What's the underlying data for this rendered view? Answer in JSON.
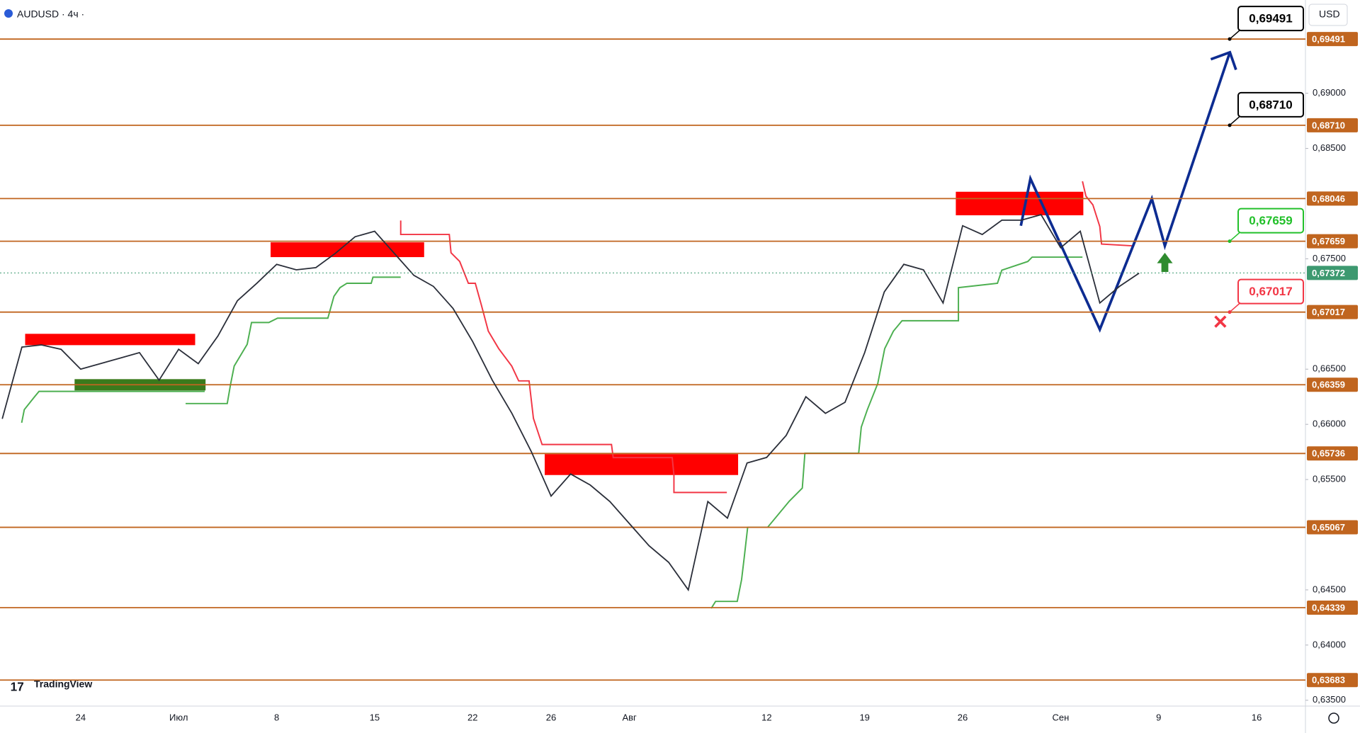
{
  "chart_data": {
    "type": "line",
    "title": "AUDUSD · 4ч ·",
    "currency": "USD",
    "brand": "TradingView",
    "color": "#2a2e39",
    "grid": false,
    "ylim": [
      0.63447,
      0.69845
    ],
    "yticks": [
      {
        "value": 0.635,
        "label": "0,63500"
      },
      {
        "value": 0.64,
        "label": "0,64000"
      },
      {
        "value": 0.645,
        "label": "0,64500"
      },
      {
        "value": 0.655,
        "label": "0,65500"
      },
      {
        "value": 0.66,
        "label": "0,66000"
      },
      {
        "value": 0.665,
        "label": "0,66500"
      },
      {
        "value": 0.675,
        "label": "0,67500"
      },
      {
        "value": 0.685,
        "label": "0,68500"
      },
      {
        "value": 0.69,
        "label": "0,69000"
      }
    ],
    "categories": [
      null,
      null,
      null,
      null,
      "24",
      null,
      null,
      null,
      null,
      "Июл",
      null,
      null,
      null,
      null,
      "8",
      null,
      null,
      null,
      null,
      "15",
      null,
      null,
      null,
      null,
      "22",
      null,
      null,
      null,
      "26",
      null,
      null,
      null,
      "Авг",
      null,
      null,
      null,
      null,
      null,
      null,
      "12",
      null,
      null,
      null,
      null,
      "19",
      null,
      null,
      null,
      null,
      "26",
      null,
      null,
      null,
      null,
      "Сен",
      null,
      null,
      null,
      null,
      "9",
      null,
      null,
      null,
      null,
      "16"
    ],
    "values": [
      0.6605,
      0.667,
      0.6672,
      0.6668,
      0.665,
      0.6655,
      0.666,
      0.6665,
      0.664,
      0.6668,
      0.6655,
      0.668,
      0.6712,
      0.6728,
      0.6745,
      0.674,
      0.6742,
      0.6755,
      0.677,
      0.6775,
      0.6755,
      0.6735,
      0.6725,
      0.6705,
      0.6675,
      0.664,
      0.661,
      0.6575,
      0.6535,
      0.6555,
      0.6545,
      0.653,
      0.651,
      0.649,
      0.6475,
      0.645,
      0.653,
      0.6515,
      0.6565,
      0.657,
      0.659,
      0.6625,
      0.661,
      0.662,
      0.6665,
      0.672,
      0.6745,
      0.674,
      0.671,
      0.678,
      0.6772,
      0.6785,
      0.6785,
      0.679,
      0.676,
      0.6775,
      0.671,
      0.6725,
      0.6737,
      null,
      null,
      null,
      null,
      null,
      null
    ],
    "levels": [
      {
        "value": 0.69491,
        "label": "0,69491"
      },
      {
        "value": 0.6871,
        "label": "0,68710"
      },
      {
        "value": 0.68046,
        "label": "0,68046"
      },
      {
        "value": 0.67659,
        "label": "0,67659"
      },
      {
        "value": 0.67017,
        "label": "0,67017"
      },
      {
        "value": 0.66359,
        "label": "0,66359"
      },
      {
        "value": 0.65736,
        "label": "0,65736"
      },
      {
        "value": 0.65067,
        "label": "0,65067"
      },
      {
        "value": 0.64339,
        "label": "0,64339"
      },
      {
        "value": 0.63683,
        "label": "0,63683"
      }
    ],
    "level_color": "#c0651f",
    "current": {
      "value": 0.67372,
      "label": "0,67372",
      "color": "#3d9970"
    },
    "callouts": [
      {
        "value": 0.69491,
        "label": "0,69491",
        "color": "#000000"
      },
      {
        "value": 0.6871,
        "label": "0,68710",
        "color": "#000000"
      },
      {
        "value": 0.67659,
        "label": "0,67659",
        "color": "#22c02a"
      },
      {
        "value": 0.67017,
        "label": "0,67017",
        "color": "#f23645"
      }
    ]
  }
}
